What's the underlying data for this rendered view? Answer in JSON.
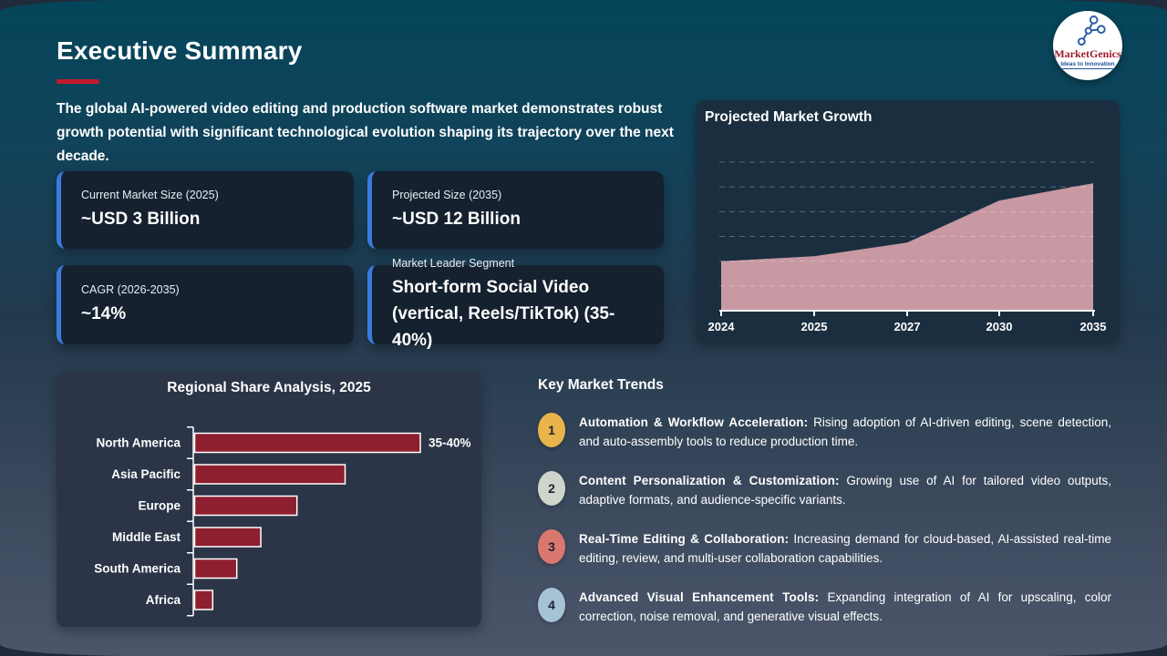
{
  "slide": {
    "title": "Executive Summary",
    "accent_color": "#c01a2c",
    "intro": "The global AI-powered video editing and production software market demonstrates robust growth potential with significant technological evolution shaping its trajectory over the next decade."
  },
  "logo": {
    "name": "MarketGenics",
    "tagline": "Ideas to Innovation"
  },
  "stats": [
    {
      "label": "Current Market Size (2025)",
      "value": "~USD 3 Billion"
    },
    {
      "label": "Projected Size (2035)",
      "value": "~USD 12 Billion"
    },
    {
      "label": "CAGR (2026-2035)",
      "value": "~14%"
    },
    {
      "label": "Market Leader Segment",
      "value": "Short-form Social Video (vertical, Reels/TikTok) (35-40%)"
    }
  ],
  "trends": {
    "heading": "Key Market Trends",
    "items": [
      {
        "number": "1",
        "badge_color": "#e9b44c",
        "title": "Automation & Workflow Acceleration:",
        "description": "Rising adoption of AI-driven editing, scene detection, and auto-assembly tools to reduce production time."
      },
      {
        "number": "2",
        "badge_color": "#ced5cb",
        "title": "Content Personalization & Customization:",
        "description": "Growing use of AI for tailored video outputs, adaptive formats, and audience-specific variants."
      },
      {
        "number": "3",
        "badge_color": "#d9786f",
        "title": "Real-Time Editing & Collaboration:",
        "description": "Increasing demand for cloud-based, AI-assisted real-time editing, review, and multi-user collaboration capabilities."
      },
      {
        "number": "4",
        "badge_color": "#a6c3d5",
        "title": "Advanced Visual Enhancement Tools:",
        "description": "Expanding integration of AI for upscaling, color correction, noise removal, and generative visual effects."
      }
    ]
  },
  "chart_data": [
    {
      "type": "area",
      "title": "Projected Market Growth",
      "x": [
        "2024",
        "2025",
        "2027",
        "2030",
        "2035"
      ],
      "values": [
        4,
        4.4,
        5.5,
        8.9,
        10.3
      ],
      "values_estimated": true,
      "ylim": [
        0,
        13.5
      ],
      "gridline_values": [
        2,
        4,
        6,
        8,
        10,
        12
      ],
      "grid": "dashed-horizontal",
      "legend": "none",
      "fill_color": "#c899a3",
      "axis_color": "#ffffff"
    },
    {
      "type": "bar",
      "orientation": "horizontal",
      "title": "Regional Share Analysis, 2025",
      "categories": [
        "North America",
        "Asia Pacific",
        "Europe",
        "Middle East",
        "South America",
        "Africa"
      ],
      "values": [
        37.5,
        25,
        17,
        11,
        7,
        3
      ],
      "values_estimated": true,
      "xlim": [
        0,
        40
      ],
      "data_labels": [
        "35-40%",
        "",
        "",
        "",
        "",
        ""
      ],
      "bar_color": "#8e1f2e",
      "bar_border_color": "#ffffff",
      "axis_color": "#ffffff"
    }
  ]
}
